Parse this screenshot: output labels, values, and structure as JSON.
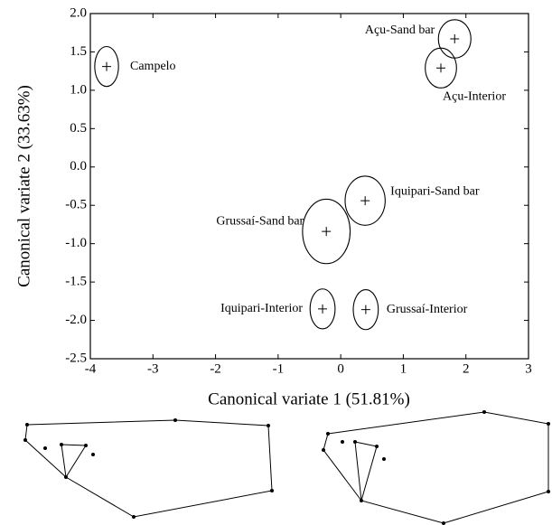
{
  "chart_data": {
    "type": "scatter",
    "xlabel": "Canonical variate 1 (51.81%)",
    "ylabel": "Canonical variate 2 (33.63%)",
    "xlim": [
      -4,
      3
    ],
    "xticks": [
      -4,
      -3,
      -2,
      -1,
      0,
      1,
      2,
      3
    ],
    "ylim": [
      -2.5,
      2.0
    ],
    "yticks": [
      {
        "value": 2.0,
        "label": "2.0"
      },
      1.5,
      {
        "value": 1.0,
        "label": "1.0"
      },
      0.5,
      {
        "value": 0.0,
        "label": "0.0"
      },
      -0.5,
      {
        "value": -1.0,
        "label": "-1.0"
      },
      -1.5,
      {
        "value": -2.0,
        "label": "-2.0"
      },
      -2.5
    ],
    "color": "#000000",
    "labels": [
      "Campelo",
      "Açu-Sand bar",
      "Açu-Interior",
      "Iquipari-Sand bar",
      "Grussaí-Sand bar",
      "Iquipari-Interior",
      "Grussaí-Interior"
    ],
    "x": [
      -3.74,
      1.82,
      1.6,
      0.39,
      -0.23,
      -0.29,
      0.4
    ],
    "y": [
      1.31,
      1.67,
      1.29,
      -0.44,
      -0.84,
      -1.85,
      -1.86
    ],
    "ellipse_rx": [
      0.19,
      0.26,
      0.25,
      0.32,
      0.38,
      0.2,
      0.2
    ],
    "ellipse_ry": [
      0.26,
      0.25,
      0.26,
      0.32,
      0.42,
      0.26,
      0.26
    ]
  }
}
